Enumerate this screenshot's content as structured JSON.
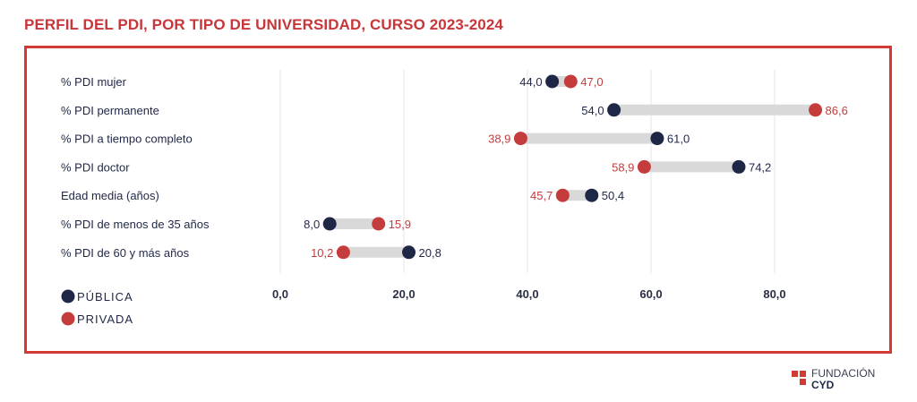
{
  "title": "PERFIL DEL PDI, POR TIPO DE UNIVERSIDAD, CURSO 2023-2024",
  "colors": {
    "publica": "#1f2747",
    "privada": "#c43c3c",
    "bar": "#d9d9d9",
    "grid": "#e6e6e6",
    "frame": "#d23a34",
    "title": "#c8363a"
  },
  "chart_data": {
    "type": "dumbbell",
    "title": "PERFIL DEL PDI, POR TIPO DE UNIVERSIDAD, CURSO 2023-2024",
    "categories": [
      "% PDI mujer",
      "% PDI permanente",
      "% PDI a tiempo completo",
      "% PDI doctor",
      "Edad media (años)",
      "% PDI de menos de 35 años",
      "% PDI de 60 y más años"
    ],
    "series": [
      {
        "name": "PÚBLICA",
        "values": [
          44.0,
          54.0,
          61.0,
          74.2,
          50.4,
          8.0,
          20.8
        ],
        "labels": [
          "44,0",
          "54,0",
          "61,0",
          "74,2",
          "50,4",
          "8,0",
          "20,8"
        ]
      },
      {
        "name": "PRIVADA",
        "values": [
          47.0,
          86.6,
          38.9,
          58.9,
          45.7,
          15.9,
          10.2
        ],
        "labels": [
          "47,0",
          "86,6",
          "38,9",
          "58,9",
          "45,7",
          "15,9",
          "10,2"
        ]
      }
    ],
    "xticks": [
      0,
      20,
      40,
      60,
      80
    ],
    "xtick_labels": [
      "0,0",
      "20,0",
      "40,0",
      "60,0",
      "80,0"
    ],
    "xlim": [
      0,
      90
    ],
    "grid": true,
    "legend": "bottom-left"
  },
  "legend": {
    "items": [
      "PÚBLICA",
      "PRIVADA"
    ]
  },
  "logo": {
    "line1": "FUNDACIÓN",
    "line2": "CYD"
  }
}
